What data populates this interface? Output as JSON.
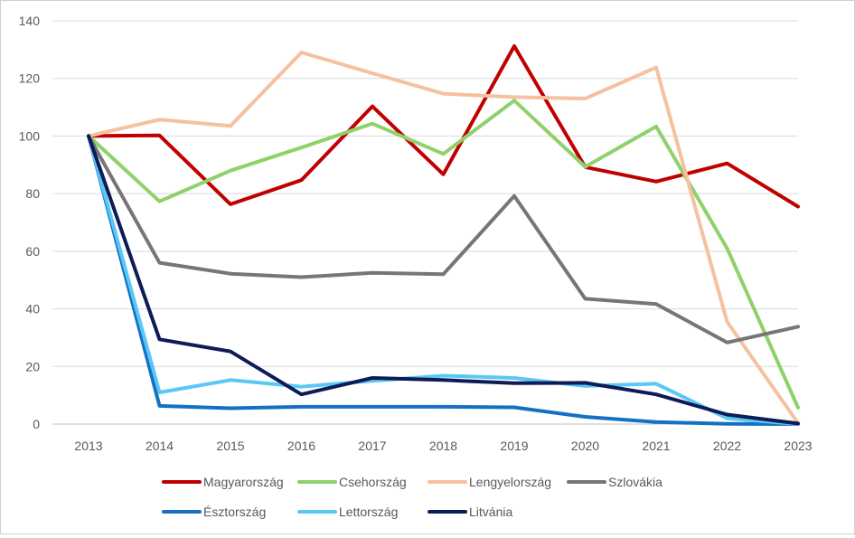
{
  "chart_data": {
    "type": "line",
    "title": "",
    "xlabel": "",
    "ylabel": "",
    "x": [
      "2013",
      "2014",
      "2015",
      "2016",
      "2017",
      "2018",
      "2019",
      "2020",
      "2021",
      "2022",
      "2023"
    ],
    "ylim": [
      0,
      140
    ],
    "yticks": [
      0,
      20,
      40,
      60,
      80,
      100,
      120,
      140
    ],
    "grid": true,
    "legend_position": "bottom",
    "series": [
      {
        "name": "Magyarország",
        "color": "#c00000",
        "values": [
          100,
          100.2,
          76.3,
          84.7,
          110.3,
          86.7,
          131.2,
          89.2,
          84.2,
          90.5,
          75.5
        ]
      },
      {
        "name": "Csehország",
        "color": "#8fd16a",
        "values": [
          100,
          77.3,
          88.0,
          96.0,
          104.3,
          93.8,
          112.3,
          89.3,
          103.3,
          61.0,
          5.7
        ]
      },
      {
        "name": "Lengyelország",
        "color": "#f5c1a0",
        "values": [
          100,
          105.7,
          103.5,
          129.0,
          121.8,
          114.7,
          113.5,
          113.0,
          123.8,
          35.5,
          0.3
        ]
      },
      {
        "name": "Szlovákia",
        "color": "#767676",
        "values": [
          100,
          56.0,
          52.2,
          51.0,
          52.5,
          52.0,
          79.2,
          43.5,
          41.7,
          28.3,
          33.8
        ]
      },
      {
        "name": "Észtország",
        "color": "#1570c4",
        "values": [
          100,
          6.3,
          5.5,
          6.0,
          6.0,
          6.0,
          5.8,
          2.5,
          0.7,
          0.1,
          0.0
        ]
      },
      {
        "name": "Lettország",
        "color": "#5ac8f5",
        "values": [
          100,
          11.0,
          15.3,
          13.0,
          15.0,
          16.8,
          16.0,
          13.2,
          14.0,
          2.0,
          0.0
        ]
      },
      {
        "name": "Litvánia",
        "color": "#0d1b57",
        "values": [
          100,
          29.4,
          25.2,
          10.3,
          16.0,
          15.3,
          14.2,
          14.3,
          10.3,
          3.3,
          0.2
        ]
      }
    ]
  }
}
